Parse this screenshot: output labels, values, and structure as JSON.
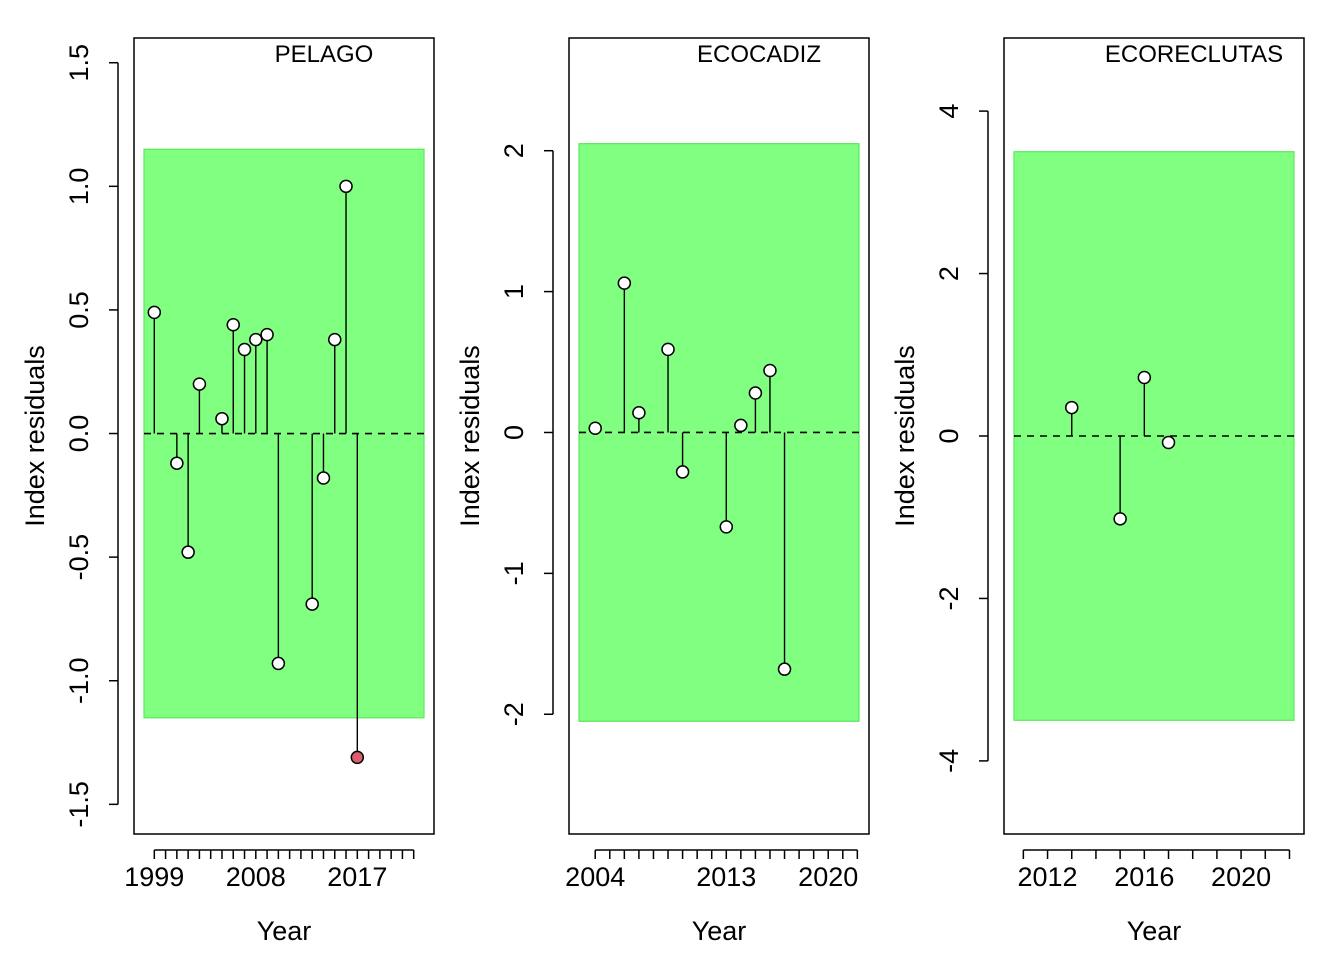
{
  "figure": {
    "colors": {
      "band": "#80ff80",
      "band_edge": "#5be85b",
      "point_fill": "#ffffff",
      "outlier_fill": "#d9606b",
      "line": "#000000"
    }
  },
  "chart_data": [
    {
      "type": "scatter",
      "title": "PELAGO",
      "xlabel": "Year",
      "ylabel": "Index residuals",
      "xlim": [
        1997.2,
        2023.8
      ],
      "ylim": [
        -1.62,
        1.6
      ],
      "xticks": [
        1999,
        2000,
        2001,
        2002,
        2003,
        2004,
        2005,
        2006,
        2007,
        2008,
        2009,
        2010,
        2011,
        2012,
        2013,
        2014,
        2015,
        2016,
        2017,
        2018,
        2019,
        2020,
        2021,
        2022
      ],
      "xtick_labels": [
        {
          "x": 1999,
          "label": "1999"
        },
        {
          "x": 2008,
          "label": "2008"
        },
        {
          "x": 2017,
          "label": "2017"
        }
      ],
      "yticks": [
        -1.5,
        -1.0,
        -0.5,
        0.0,
        0.5,
        1.0,
        1.5
      ],
      "ytick_labels": [
        "-1.5",
        "-1.0",
        "-0.5",
        "0.0",
        "0.5",
        "1.0",
        "1.5"
      ],
      "band": [
        -1.15,
        1.15
      ],
      "reference_line": 0,
      "grid": false,
      "x": [
        1999,
        2001,
        2002,
        2003,
        2005,
        2006,
        2007,
        2008,
        2009,
        2010,
        2013,
        2014,
        2015,
        2016,
        2017
      ],
      "y": [
        0.49,
        -0.12,
        -0.48,
        0.2,
        0.06,
        0.44,
        0.34,
        0.38,
        0.4,
        -0.93,
        -0.69,
        -0.18,
        0.38,
        1.0,
        -1.31
      ],
      "outlier_index": 14
    },
    {
      "type": "scatter",
      "title": "ECOCADIZ",
      "xlabel": "Year",
      "ylabel": "Index residuals",
      "xlim": [
        2002.2,
        2022.8
      ],
      "ylim": [
        -2.85,
        2.8
      ],
      "xticks": [
        2004,
        2005,
        2006,
        2007,
        2008,
        2009,
        2010,
        2011,
        2012,
        2013,
        2014,
        2015,
        2016,
        2017,
        2018,
        2019,
        2020,
        2021,
        2022
      ],
      "xtick_labels": [
        {
          "x": 2004,
          "label": "2004"
        },
        {
          "x": 2013,
          "label": "2013"
        },
        {
          "x": 2020,
          "label": "2020"
        }
      ],
      "yticks": [
        -2,
        -1,
        0,
        1,
        2
      ],
      "ytick_labels": [
        "-2",
        "-1",
        "0",
        "1",
        "2"
      ],
      "band": [
        -2.05,
        2.05
      ],
      "reference_line": 0,
      "grid": false,
      "x": [
        2004,
        2006,
        2007,
        2009,
        2010,
        2013,
        2014,
        2015,
        2016,
        2017
      ],
      "y": [
        0.03,
        1.06,
        0.14,
        0.59,
        -0.28,
        -0.67,
        0.05,
        0.28,
        0.44,
        -1.68
      ],
      "outlier_index": null
    },
    {
      "type": "scatter",
      "title": "ECORECLUTAS",
      "xlabel": "Year",
      "ylabel": "Index residuals",
      "xlim": [
        2010.2,
        2022.6
      ],
      "ylim": [
        -4.9,
        4.9
      ],
      "xticks": [
        2011,
        2012,
        2013,
        2014,
        2015,
        2016,
        2017,
        2018,
        2019,
        2020,
        2021,
        2022
      ],
      "xtick_labels": [
        {
          "x": 2012,
          "label": "2012"
        },
        {
          "x": 2016,
          "label": "2016"
        },
        {
          "x": 2020,
          "label": "2020"
        }
      ],
      "yticks": [
        -4,
        -2,
        0,
        2,
        4
      ],
      "ytick_labels": [
        "-4",
        "-2",
        "0",
        "2",
        "4"
      ],
      "band": [
        -3.5,
        3.5
      ],
      "reference_line": 0,
      "grid": false,
      "x": [
        2013,
        2015,
        2016,
        2017
      ],
      "y": [
        0.35,
        -1.02,
        0.72,
        -0.08
      ],
      "outlier_index": null
    }
  ]
}
